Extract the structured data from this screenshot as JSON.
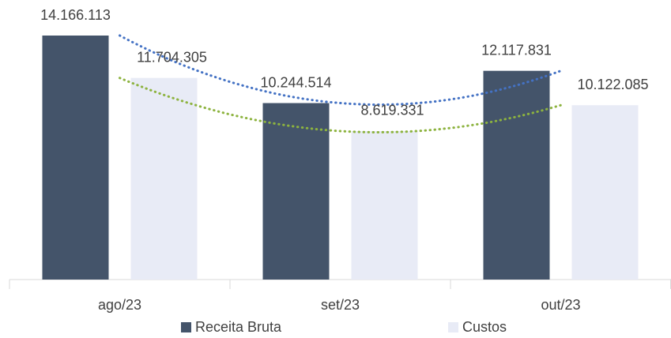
{
  "chart_data": {
    "type": "bar",
    "categories": [
      "ago/23",
      "set/23",
      "out/23"
    ],
    "series": [
      {
        "name": "Receita Bruta",
        "color": "#44546a",
        "trendline_color": "#4472c4",
        "values": [
          14166113,
          10244514,
          12117831
        ],
        "value_labels": [
          "14.166.113",
          "10.244.514",
          "12.117.831"
        ]
      },
      {
        "name": "Custos",
        "color": "#e8ebf6",
        "trendline_color": "#8db33f",
        "values": [
          11704305,
          8619331,
          10122085
        ],
        "value_labels": [
          "11.704.305",
          "8.619.331",
          "10.122.085"
        ]
      }
    ],
    "ylim": [
      0,
      16000000
    ],
    "trendline": "polynomial",
    "legend": "bottom"
  }
}
